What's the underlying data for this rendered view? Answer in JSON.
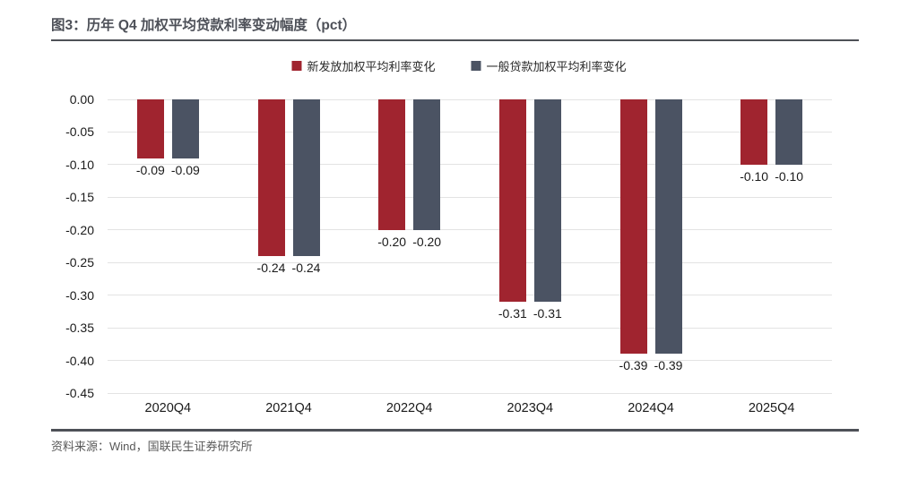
{
  "figure": {
    "title": "图3：历年 Q4 加权平均贷款利率变动幅度（pct）",
    "source": "资料来源：Wind，国联民生证券研究所"
  },
  "chart_data": {
    "type": "bar",
    "title": "历年 Q4 加权平均贷款利率变动幅度（pct）",
    "categories": [
      "2020Q4",
      "2021Q4",
      "2022Q4",
      "2023Q4",
      "2024Q4",
      "2025Q4"
    ],
    "series": [
      {
        "name": "新发放加权平均利率变化",
        "color": "#A0242F",
        "values": [
          -0.09,
          -0.24,
          -0.2,
          -0.31,
          -0.39,
          -0.1
        ]
      },
      {
        "name": "一般贷款加权平均利率变化",
        "color": "#4B5363",
        "values": [
          -0.09,
          -0.24,
          -0.2,
          -0.31,
          -0.39,
          -0.1
        ]
      }
    ],
    "data_labels": [
      "-0.09",
      "-0.24",
      "-0.20",
      "-0.31",
      "-0.39",
      "-0.10"
    ],
    "y_ticks": [
      0.0,
      -0.05,
      -0.1,
      -0.15,
      -0.2,
      -0.25,
      -0.3,
      -0.35,
      -0.4,
      -0.45
    ],
    "ylim": [
      -0.45,
      0
    ],
    "xlabel": "",
    "ylabel": "",
    "grid": true,
    "legend_position": "top-center",
    "gridline_color": "#e3e3e3",
    "label_color": "#1a1a1a"
  }
}
